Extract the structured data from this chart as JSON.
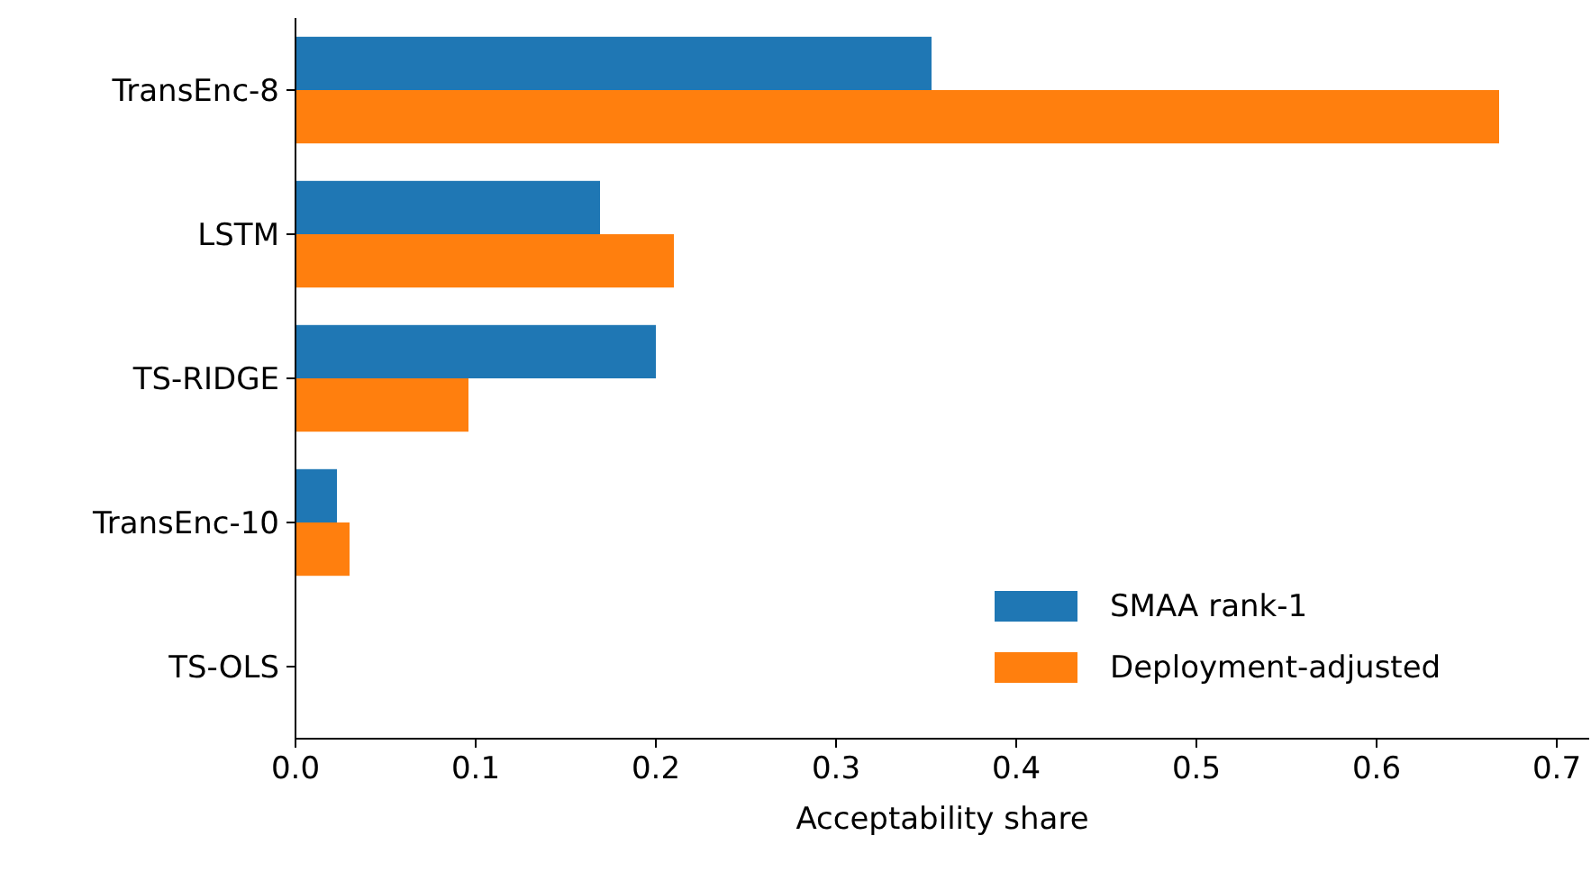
{
  "chart_data": {
    "type": "bar",
    "orientation": "horizontal",
    "xlabel": "Acceptability share",
    "categories": [
      "TransEnc-8",
      "LSTM",
      "TS-RIDGE",
      "TransEnc-10",
      "TS-OLS"
    ],
    "series": [
      {
        "name": "SMAA rank-1",
        "color": "#1f77b4",
        "values": [
          0.353,
          0.169,
          0.2,
          0.023,
          0
        ]
      },
      {
        "name": "Deployment-adjusted",
        "color": "#ff7f0e",
        "values": [
          0.668,
          0.21,
          0.096,
          0.03,
          0
        ]
      }
    ],
    "xlim": [
      0,
      0.718
    ],
    "xticks": [
      {
        "value": 0,
        "label": "0.0"
      },
      0.1,
      0.2,
      0.3,
      0.4,
      0.5,
      0.6,
      0.7
    ],
    "grid": false,
    "legend": "bottom right"
  }
}
